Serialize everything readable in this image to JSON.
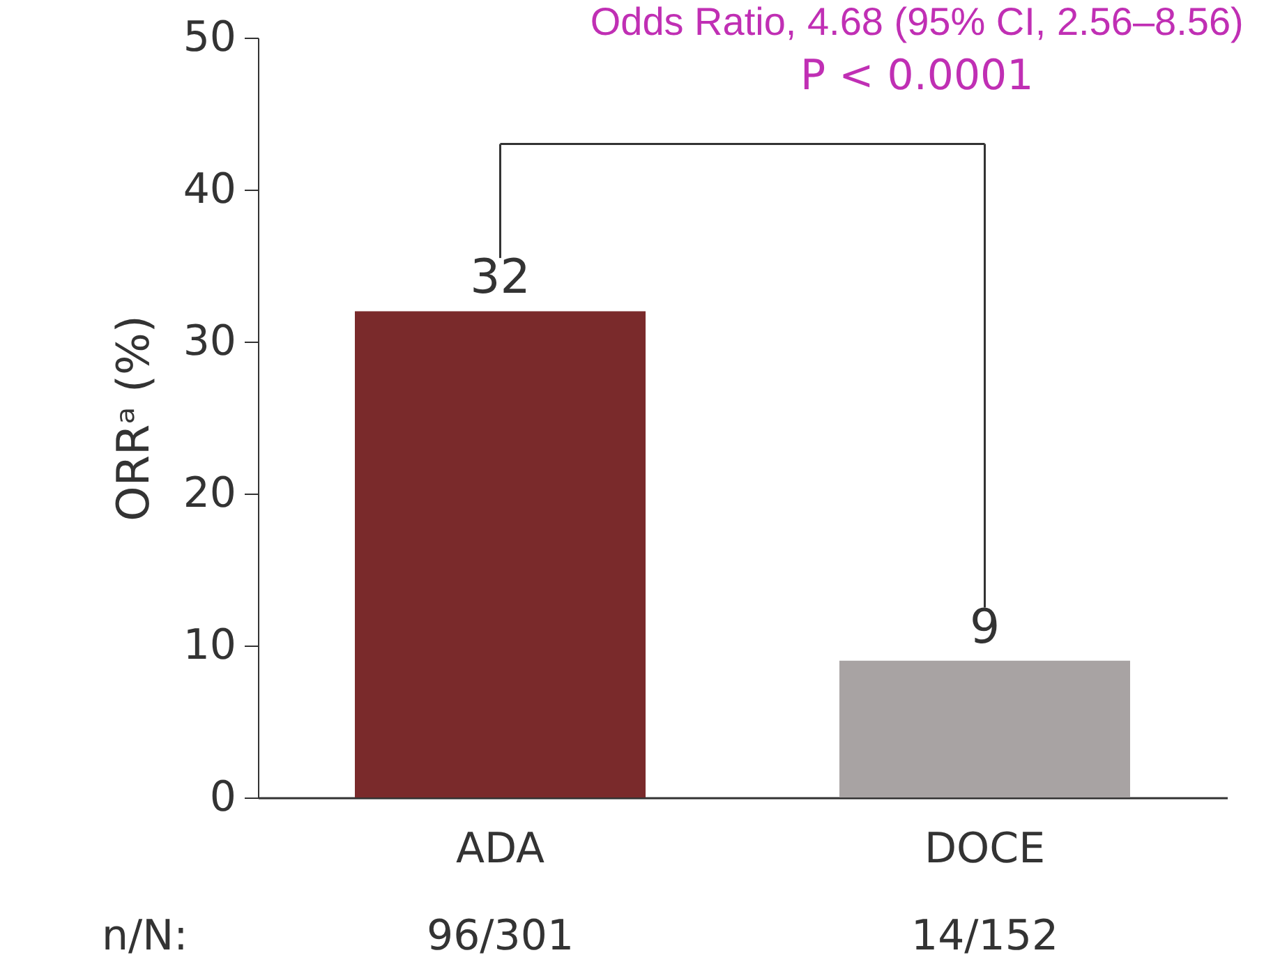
{
  "chart_data": {
    "type": "bar",
    "ylabel": "ORRᵃ (%)",
    "categories": [
      "ADA",
      "DOCE"
    ],
    "values": [
      32,
      9
    ],
    "colors": [
      "#7a2a2b",
      "#a8a3a3"
    ],
    "ylim": [
      0,
      50
    ],
    "yticks": [
      0,
      10,
      20,
      30,
      40,
      50
    ],
    "data_labels": true,
    "grid": false,
    "annotations": [
      "Odds Ratio, 4.68 (95% CI, 2.56–8.56)",
      "P < 0.0001",
      "n/N:",
      "96/301",
      "14/152"
    ]
  }
}
